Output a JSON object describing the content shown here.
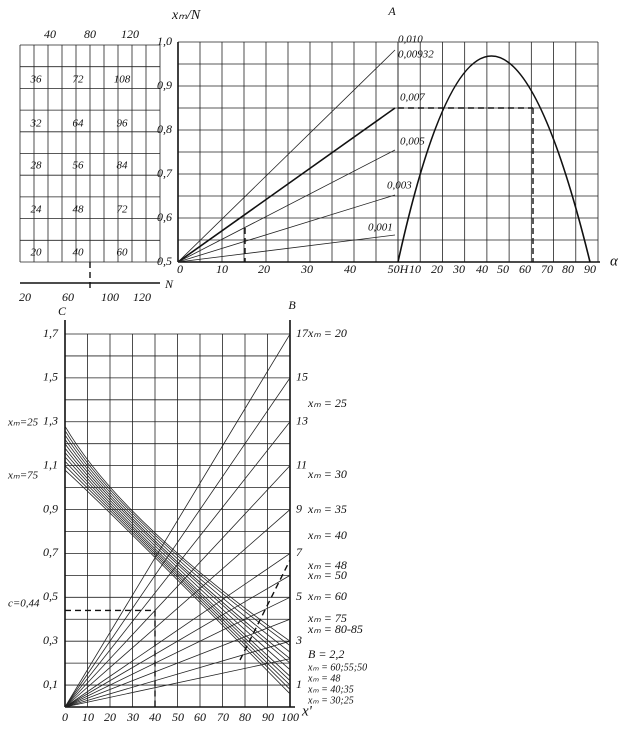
{
  "top_left": {
    "top_ticks": [
      "40",
      "80",
      "120"
    ],
    "cells": [
      [
        "36",
        "72",
        "108"
      ],
      [
        "32",
        "64",
        "96"
      ],
      [
        "28",
        "56",
        "84"
      ],
      [
        "24",
        "48",
        "72"
      ],
      [
        "20",
        "40",
        "60"
      ]
    ],
    "bottom_ticks": [
      "20",
      "60",
      "100",
      "120"
    ],
    "axis_label": "N"
  },
  "top_right": {
    "y_label": "xₘ/N",
    "point_label": "A",
    "y_ticks": [
      "1,0",
      "0,9",
      "0,8",
      "0,7",
      "0,6",
      "0,5"
    ],
    "x_ticks": [
      "0",
      "10",
      "20",
      "30",
      "40",
      "50H"
    ],
    "x_ticks_2": [
      "10",
      "20",
      "30",
      "40",
      "50",
      "60",
      "70",
      "80",
      "90"
    ],
    "x_label": "α",
    "line_labels": [
      "0,010",
      "0,00932",
      "0,007",
      "0,005",
      "0,003",
      "0,001"
    ]
  },
  "bottom": {
    "left_label": "C",
    "right_label": "B",
    "y_ticks": [
      "1,7",
      "1,5",
      "1,3",
      "1,1",
      "0,9",
      "0,7",
      "0,5",
      "0,3",
      "0,1"
    ],
    "y2_ticks": [
      "17",
      "15",
      "13",
      "11",
      "9",
      "7",
      "5",
      "3",
      "1"
    ],
    "x_ticks": [
      "0",
      "10",
      "20",
      "30",
      "40",
      "50",
      "60",
      "70",
      "80",
      "90",
      "100"
    ],
    "x_label": "x'",
    "left_notes": [
      "xₘ=25",
      "xₘ=75",
      "c=0,44"
    ],
    "right_notes": [
      "xₘ = 20",
      "xₘ = 25",
      "xₘ = 30",
      "xₘ = 35",
      "xₘ = 40",
      "xₘ = 48",
      "xₘ = 50",
      "xₘ = 60",
      "xₘ = 75",
      "xₘ = 80-85",
      "B = 2,2",
      "xₘ = 60;55;50",
      "xₘ = 48",
      "xₘ = 40;35",
      "xₘ = 30;25"
    ]
  }
}
